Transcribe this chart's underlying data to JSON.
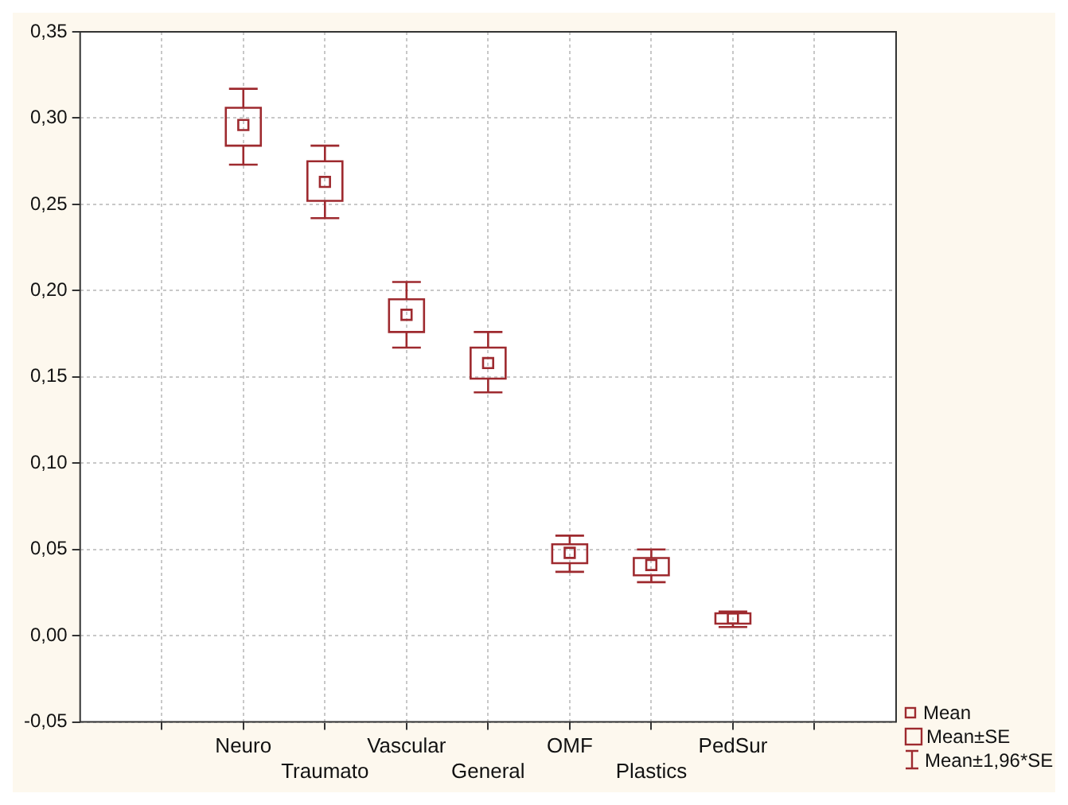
{
  "chart_data": {
    "type": "box",
    "categories": [
      "Neuro",
      "Traumato",
      "Vascular",
      "General",
      "OMF",
      "Plastics",
      "PedSur"
    ],
    "series": [
      {
        "color": "#9e2a2f",
        "boxes": [
          {
            "low": 0.273,
            "q1": 0.284,
            "q3": 0.306,
            "high": 0.317,
            "mean": 0.296
          },
          {
            "low": 0.242,
            "q1": 0.252,
            "q3": 0.275,
            "high": 0.284,
            "mean": 0.263
          },
          {
            "low": 0.167,
            "q1": 0.176,
            "q3": 0.195,
            "high": 0.205,
            "mean": 0.186
          },
          {
            "low": 0.141,
            "q1": 0.149,
            "q3": 0.167,
            "high": 0.176,
            "mean": 0.158
          },
          {
            "low": 0.037,
            "q1": 0.042,
            "q3": 0.053,
            "high": 0.058,
            "mean": 0.048
          },
          {
            "low": 0.031,
            "q1": 0.035,
            "q3": 0.045,
            "high": 0.05,
            "mean": 0.041
          },
          {
            "low": 0.005,
            "q1": 0.007,
            "q3": 0.013,
            "high": 0.014,
            "mean": 0.01
          }
        ]
      }
    ],
    "ylim": [
      -0.05,
      0.35
    ],
    "yticks": [
      {
        "value": -0.05,
        "label": "-0,05"
      },
      {
        "value": 0,
        "label": "0,00"
      },
      {
        "value": 0.05,
        "label": "0,05"
      },
      {
        "value": 0.1,
        "label": "0,10"
      },
      {
        "value": 0.15,
        "label": "0,15"
      },
      {
        "value": 0.2,
        "label": "0,20"
      },
      {
        "value": 0.25,
        "label": "0,25"
      },
      {
        "value": 0.3,
        "label": "0,30"
      },
      {
        "value": 0.35,
        "label": "0,35"
      }
    ],
    "grid": true,
    "annotations": [
      "Mean",
      "Mean±SE",
      "Mean±1,96*SE"
    ]
  }
}
